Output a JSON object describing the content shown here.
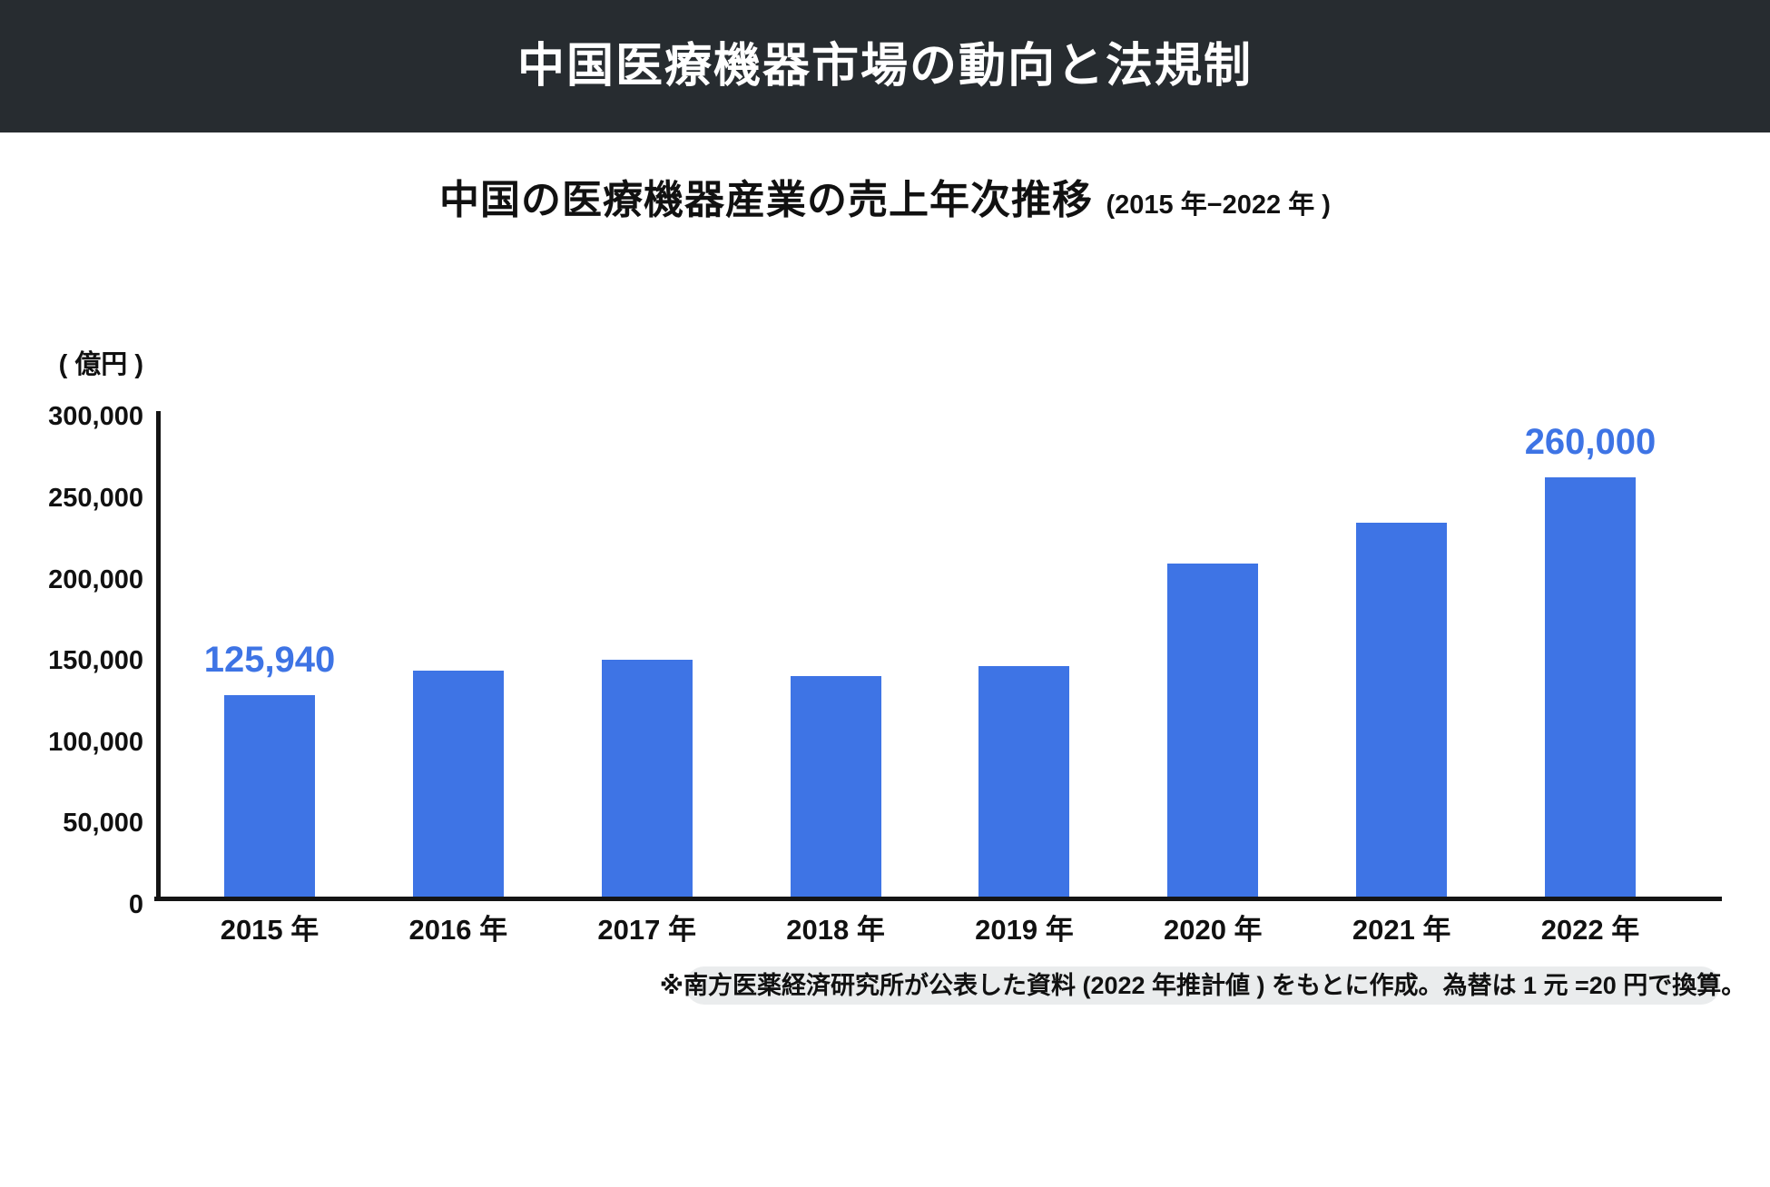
{
  "header": {
    "title": "中国医療機器市場の動向と法規制"
  },
  "chart": {
    "title": "中国の医療機器産業の売上年次推移",
    "title_suffix": "(2015 年−2022 年 )",
    "unit_label": "( 億円 )"
  },
  "chart_data": {
    "type": "bar",
    "title": "中国の医療機器産業の売上年次推移 (2015 年−2022 年 )",
    "xlabel": "",
    "ylabel": "( 億円 )",
    "ylim": [
      0,
      300000
    ],
    "grid": false,
    "legend": "none",
    "categories": [
      "2015 年",
      "2016 年",
      "2017 年",
      "2018 年",
      "2019 年",
      "2020 年",
      "2021 年",
      "2022 年"
    ],
    "values": [
      125940,
      141000,
      148000,
      138000,
      144000,
      207000,
      232000,
      260000
    ],
    "data_labels": [
      {
        "index": 0,
        "text": "125,940"
      },
      {
        "index": 7,
        "text": "260,000"
      }
    ],
    "y_ticks": [
      {
        "label": "300,000",
        "value": 300000
      },
      {
        "label": "250,000",
        "value": 250000
      },
      {
        "label": "200,000",
        "value": 200000
      },
      {
        "label": "150,000",
        "value": 150000
      },
      {
        "label": "100,000",
        "value": 100000
      },
      {
        "label": "50,000",
        "value": 50000
      },
      {
        "label": "0",
        "value": 0
      }
    ]
  },
  "footnote": {
    "text": "※南方医薬経済研究所が公表した資料 (2022 年推計値 ) をもとに作成。為替は 1 元 =20 円で換算。"
  },
  "colors": {
    "bar": "#3e74e5",
    "accent_text": "#3e74e5",
    "header_bg": "#272c30",
    "footnote_bg": "#eaeced",
    "axis": "#141414"
  }
}
